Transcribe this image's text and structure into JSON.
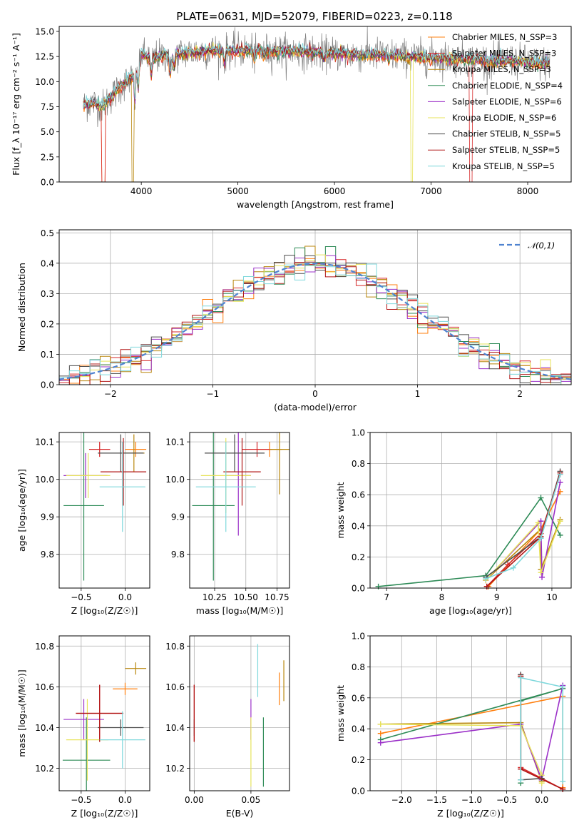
{
  "figure": {
    "title": "PLATE=0631, MJD=52079, FIBERID=0223, z=0.118"
  },
  "series_colors": [
    "#ff7f0e",
    "#d62728",
    "#b8860b",
    "#2e8b57",
    "#9b30c8",
    "#e7e35a",
    "#4d4d4d",
    "#b01515",
    "#7fd8dc"
  ],
  "chart_data": [
    {
      "id": "spectrum",
      "type": "line",
      "xlabel": "wavelength [Angstrom, rest frame]",
      "ylabel": "Flux [f_λ 10⁻¹⁷ erg cm⁻² s⁻¹ A⁻¹]",
      "xlim": [
        3150,
        8450
      ],
      "ylim": [
        0,
        15.5
      ],
      "xticks": [
        4000,
        5000,
        6000,
        7000,
        8000
      ],
      "yticks": [
        0.0,
        2.5,
        5.0,
        7.5,
        10.0,
        12.5,
        15.0
      ],
      "grid": false,
      "legend_position": "top-right",
      "legend": [
        "Chabrier MILES, N_SSP=3",
        "Salpeter MILES, N_SSP=3",
        "Kroupa MILES, N_SSP=3",
        "Chabrier ELODIE, N_SSP=4",
        "Salpeter ELODIE, N_SSP=6",
        "Kroupa ELODIE, N_SSP=6",
        "Chabrier STELIB, N_SSP=5",
        "Salpeter STELIB, N_SSP=5",
        "Kroupa STELIB, N_SSP=5"
      ],
      "data_envelope": {
        "wavelength": [
          3400,
          3500,
          3600,
          3700,
          3800,
          3900,
          4000,
          4100,
          4200,
          4400,
          4600,
          4800,
          5000,
          5200,
          5400,
          5600,
          5800,
          6000,
          6200,
          6400,
          6600,
          6800,
          7000,
          7200,
          7400,
          7600,
          7800,
          8000,
          8200
        ],
        "flux": [
          7.6,
          7.9,
          7.5,
          8.6,
          9.6,
          10.4,
          12.7,
          12.4,
          12.5,
          12.8,
          13.0,
          13.1,
          13.1,
          13.1,
          13.0,
          13.0,
          12.9,
          12.8,
          12.7,
          12.7,
          12.6,
          12.5,
          12.4,
          12.3,
          12.2,
          12.1,
          12.1,
          11.9,
          11.8
        ]
      }
    },
    {
      "id": "residuals",
      "type": "histogram",
      "xlabel": "(data-model)/error",
      "ylabel": "Normed distribution",
      "xlim": [
        -2.5,
        2.5
      ],
      "ylim": [
        0,
        0.51
      ],
      "xticks": [
        -2,
        -1,
        0,
        1,
        2
      ],
      "yticks": [
        0.0,
        0.1,
        0.2,
        0.3,
        0.4,
        0.5
      ],
      "grid": true,
      "legend_position": "top-right",
      "legend": [
        "𝒩(0,1)"
      ],
      "bin_width": 0.1
    },
    {
      "id": "age_vs_Z",
      "type": "errorbar",
      "xlabel": "Z [log₁₀(Z/Z☉)]",
      "ylabel": "age  [log₁₀(age/yr)]",
      "xlim": [
        -0.75,
        0.28
      ],
      "ylim": [
        9.71,
        10.125
      ],
      "xticks": [
        -0.5,
        0.0
      ],
      "yticks": [
        9.8,
        9.9,
        10.0,
        10.1
      ],
      "grid": true,
      "points": [
        {
          "x": 0.12,
          "xerr": 0.12,
          "y": 10.08,
          "yerr": 0.02
        },
        {
          "x": -0.29,
          "xerr": 0.12,
          "y": 10.08,
          "yerr": 0.02
        },
        {
          "x": 0.1,
          "xerr": 0.12,
          "y": 10.07,
          "yerr": 0.05
        },
        {
          "x": -0.47,
          "xerr": 0.23,
          "y": 9.93,
          "yerr": 0.2
        },
        {
          "x": -0.45,
          "xerr": 0.25,
          "y": 10.01,
          "yerr": 0.06
        },
        {
          "x": -0.42,
          "xerr": 0.25,
          "y": 10.01,
          "yerr": 0.06
        },
        {
          "x": -0.05,
          "xerr": 0.26,
          "y": 10.07,
          "yerr": 0.05
        },
        {
          "x": -0.02,
          "xerr": 0.26,
          "y": 10.02,
          "yerr": 0.09
        },
        {
          "x": -0.03,
          "xerr": 0.26,
          "y": 9.98,
          "yerr": 0.12
        }
      ]
    },
    {
      "id": "age_vs_mass",
      "type": "errorbar",
      "xlabel": "mass [log₁₀(M/M☉)]",
      "ylabel": "",
      "xlim": [
        10.05,
        10.85
      ],
      "ylim": [
        9.71,
        10.125
      ],
      "xticks": [
        10.25,
        10.5,
        10.75
      ],
      "yticks": [
        9.8,
        9.9,
        10.0,
        10.1
      ],
      "grid": true,
      "points": [
        {
          "x": 10.69,
          "xerr": 0.1,
          "y": 10.08,
          "yerr": 0.02
        },
        {
          "x": 10.59,
          "xerr": 0.12,
          "y": 10.08,
          "yerr": 0.02
        },
        {
          "x": 10.77,
          "xerr": 0.08,
          "y": 10.08,
          "yerr": 0.12
        },
        {
          "x": 10.24,
          "xerr": 0.17,
          "y": 9.93,
          "yerr": 0.2
        },
        {
          "x": 10.44,
          "xerr": 0.1,
          "y": 10.01,
          "yerr": 0.16
        },
        {
          "x": 10.34,
          "xerr": 0.2,
          "y": 10.01,
          "yerr": 0.1
        },
        {
          "x": 10.41,
          "xerr": 0.24,
          "y": 10.07,
          "yerr": 0.05
        },
        {
          "x": 10.47,
          "xerr": 0.15,
          "y": 10.02,
          "yerr": 0.09
        },
        {
          "x": 10.34,
          "xerr": 0.24,
          "y": 9.98,
          "yerr": 0.12
        }
      ]
    },
    {
      "id": "weight_vs_age",
      "type": "line",
      "xlabel": "age  [log₁₀(age/yr)]",
      "ylabel": "mass weight",
      "xlim": [
        6.7,
        10.35
      ],
      "ylim": [
        0,
        1.0
      ],
      "xticks": [
        7,
        8,
        9,
        10
      ],
      "yticks": [
        0.0,
        0.2,
        0.4,
        0.6,
        0.8,
        1.0
      ],
      "grid": true,
      "series": [
        {
          "x": [
            8.85,
            9.8,
            10.15
          ],
          "y": [
            0.01,
            0.38,
            0.62
          ]
        },
        {
          "x": [
            8.82,
            9.2,
            9.8,
            10.15
          ],
          "y": [
            0.01,
            0.15,
            0.35,
            0.73
          ]
        },
        {
          "x": [
            8.8,
            9.8,
            9.8,
            10.15
          ],
          "y": [
            0.05,
            0.38,
            0.12,
            0.44
          ]
        },
        {
          "x": [
            6.85,
            8.8,
            9.8,
            10.15
          ],
          "y": [
            0.01,
            0.08,
            0.58,
            0.34
          ]
        },
        {
          "x": [
            8.8,
            9.8,
            9.82,
            10.15
          ],
          "y": [
            0.05,
            0.43,
            0.07,
            0.68
          ]
        },
        {
          "x": [
            8.8,
            9.75,
            9.8,
            10.15
          ],
          "y": [
            0.05,
            0.42,
            0.1,
            0.43
          ]
        },
        {
          "x": [
            8.8,
            9.8,
            10.15
          ],
          "y": [
            0.07,
            0.33,
            0.75
          ]
        },
        {
          "x": [
            8.82,
            9.8,
            10.15
          ],
          "y": [
            0.01,
            0.33,
            0.74
          ]
        },
        {
          "x": [
            8.8,
            9.3,
            9.8,
            10.15
          ],
          "y": [
            0.06,
            0.13,
            0.32,
            0.73
          ]
        }
      ]
    },
    {
      "id": "mass_vs_Z",
      "type": "errorbar",
      "xlabel": "Z [log₁₀(Z/Z☉)]",
      "ylabel": "mass [log₁₀(M/M☉)]",
      "xlim": [
        -0.75,
        0.28
      ],
      "ylim": [
        10.09,
        10.85
      ],
      "xticks": [
        -0.5,
        0.0
      ],
      "yticks": [
        10.2,
        10.4,
        10.6,
        10.8
      ],
      "grid": true,
      "points": [
        {
          "x": 0.0,
          "xerr": 0.14,
          "y": 10.59,
          "yerr": 0.03
        },
        {
          "x": -0.29,
          "xerr": 0.27,
          "y": 10.47,
          "yerr": 0.14
        },
        {
          "x": 0.12,
          "xerr": 0.12,
          "y": 10.69,
          "yerr": 0.03
        },
        {
          "x": -0.44,
          "xerr": 0.27,
          "y": 10.24,
          "yerr": 0.21
        },
        {
          "x": -0.47,
          "xerr": 0.23,
          "y": 10.44,
          "yerr": 0.1
        },
        {
          "x": -0.43,
          "xerr": 0.24,
          "y": 10.34,
          "yerr": 0.2
        },
        {
          "x": -0.05,
          "xerr": 0.26,
          "y": 10.4,
          "yerr": 0.04
        },
        {
          "x": -0.29,
          "xerr": 0.27,
          "y": 10.47,
          "yerr": 0.14
        },
        {
          "x": -0.03,
          "xerr": 0.26,
          "y": 10.34,
          "yerr": 0.14
        }
      ]
    },
    {
      "id": "mass_vs_EBV",
      "type": "errorbar",
      "xlabel": "E(B-V)",
      "ylabel": "",
      "xlim": [
        -0.004,
        0.084
      ],
      "ylim": [
        10.09,
        10.85
      ],
      "xticks": [
        0.0,
        0.05
      ],
      "yticks": [
        10.2,
        10.4,
        10.6,
        10.8
      ],
      "grid": true,
      "points": [
        {
          "x": 0.075,
          "y": 10.59,
          "yerr": 0.08
        },
        {
          "x": 0.0,
          "y": 10.47,
          "yerr": 0.14
        },
        {
          "x": 0.079,
          "y": 10.63,
          "yerr": 0.1
        },
        {
          "x": 0.061,
          "y": 10.28,
          "yerr": 0.17
        },
        {
          "x": 0.05,
          "y": 10.44,
          "yerr": 0.1
        },
        {
          "x": 0.05,
          "y": 10.28,
          "yerr": 0.17
        },
        {
          "x": 0.0,
          "y": 10.4,
          "yerr": 0.04
        },
        {
          "x": 0.0,
          "y": 10.47,
          "yerr": 0.14
        },
        {
          "x": 0.056,
          "y": 10.68,
          "yerr": 0.13
        }
      ]
    },
    {
      "id": "weight_vs_Z",
      "type": "line",
      "xlabel": "Z [log₁₀(Z/Z☉)]",
      "ylabel": "mass weight",
      "xlim": [
        -2.45,
        0.42
      ],
      "ylim": [
        0,
        1.0
      ],
      "xticks": [
        -2.0,
        -1.5,
        -1.0,
        -0.5,
        0.0
      ],
      "yticks": [
        0.0,
        0.2,
        0.4,
        0.6,
        0.8,
        1.0
      ],
      "grid": true,
      "series": [
        {
          "x": [
            -2.3,
            0.3,
            0.3
          ],
          "y": [
            0.37,
            0.61,
            0.02
          ]
        },
        {
          "x": [
            -0.3,
            -0.3,
            0.3
          ],
          "y": [
            0.74,
            0.15,
            0.01
          ]
        },
        {
          "x": [
            -2.3,
            -0.3,
            0.0,
            0.0
          ],
          "y": [
            0.43,
            0.44,
            0.06,
            0.07
          ]
        },
        {
          "x": [
            -2.3,
            0.3,
            -0.3,
            -0.3
          ],
          "y": [
            0.33,
            0.66,
            0.58,
            0.05
          ]
        },
        {
          "x": [
            -2.3,
            -0.3,
            0.0,
            0.3
          ],
          "y": [
            0.31,
            0.43,
            0.07,
            0.68
          ]
        },
        {
          "x": [
            -2.3,
            -0.3,
            0.0,
            0.0
          ],
          "y": [
            0.43,
            0.42,
            0.1,
            0.05
          ]
        },
        {
          "x": [
            -0.3,
            -0.3,
            0.0
          ],
          "y": [
            0.75,
            0.07,
            0.08
          ]
        },
        {
          "x": [
            -0.3,
            -0.3,
            0.3
          ],
          "y": [
            0.74,
            0.14,
            0.01
          ]
        },
        {
          "x": [
            -0.3,
            -0.3,
            0.3,
            0.3
          ],
          "y": [
            0.07,
            0.73,
            0.67,
            0.06
          ]
        }
      ]
    }
  ]
}
